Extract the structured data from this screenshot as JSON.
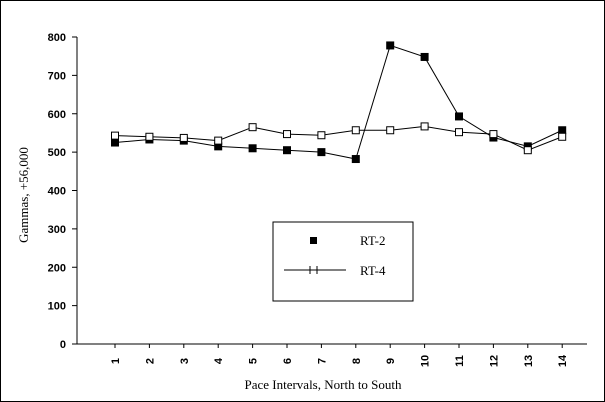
{
  "chart_data": {
    "type": "line",
    "title": "",
    "xlabel": "Pace Intervals, North to South",
    "ylabel": "Gammas, +56,000",
    "categories": [
      "1",
      "2",
      "3",
      "4",
      "5",
      "6",
      "7",
      "8",
      "9",
      "10",
      "11",
      "12",
      "13",
      "14"
    ],
    "x_tick_rotation": -90,
    "y_ticks": [
      "0",
      "100",
      "200",
      "300",
      "400",
      "500",
      "600",
      "700",
      "800"
    ],
    "ylim": [
      0,
      800
    ],
    "grid": false,
    "legend_placement": "center-right",
    "series": [
      {
        "name": "RT-2",
        "marker": "filled-square",
        "color": "#000000",
        "values": [
          525,
          533,
          530,
          515,
          510,
          505,
          500,
          482,
          778,
          748,
          593,
          538,
          515,
          557
        ]
      },
      {
        "name": "RT-4",
        "marker": "open-square",
        "color": "#000000",
        "values": [
          543,
          540,
          537,
          530,
          565,
          547,
          544,
          557,
          557,
          567,
          552,
          547,
          505,
          540
        ]
      }
    ]
  }
}
